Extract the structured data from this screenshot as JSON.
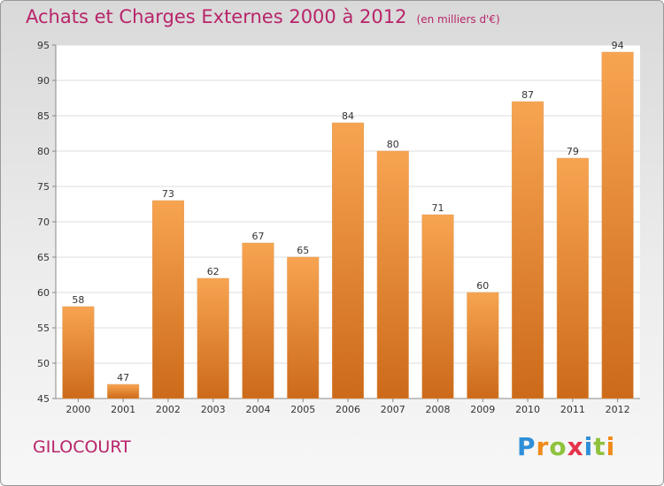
{
  "title": "Achats et Charges Externes 2000 à 2012",
  "title_unit": "(en milliers d'€)",
  "commune": "GILOCOURT",
  "logo": "Proxiti",
  "colors": {
    "bar_light": "#f7a451",
    "bar_dark": "#cc6a1a",
    "title": "#b8246a"
  },
  "chart_data": {
    "type": "bar",
    "title": "Achats et Charges Externes 2000 à 2012",
    "subtitle": "(en milliers d'€)",
    "xlabel": "",
    "ylabel": "",
    "categories": [
      "2000",
      "2001",
      "2002",
      "2003",
      "2004",
      "2005",
      "2006",
      "2007",
      "2008",
      "2009",
      "2010",
      "2011",
      "2012"
    ],
    "values": [
      58,
      47,
      73,
      62,
      67,
      65,
      84,
      80,
      71,
      60,
      87,
      79,
      94
    ],
    "ylim": [
      45,
      95
    ],
    "yticks": [
      45,
      50,
      55,
      60,
      65,
      70,
      75,
      80,
      85,
      90,
      95
    ],
    "grid": true,
    "data_labels": true
  }
}
